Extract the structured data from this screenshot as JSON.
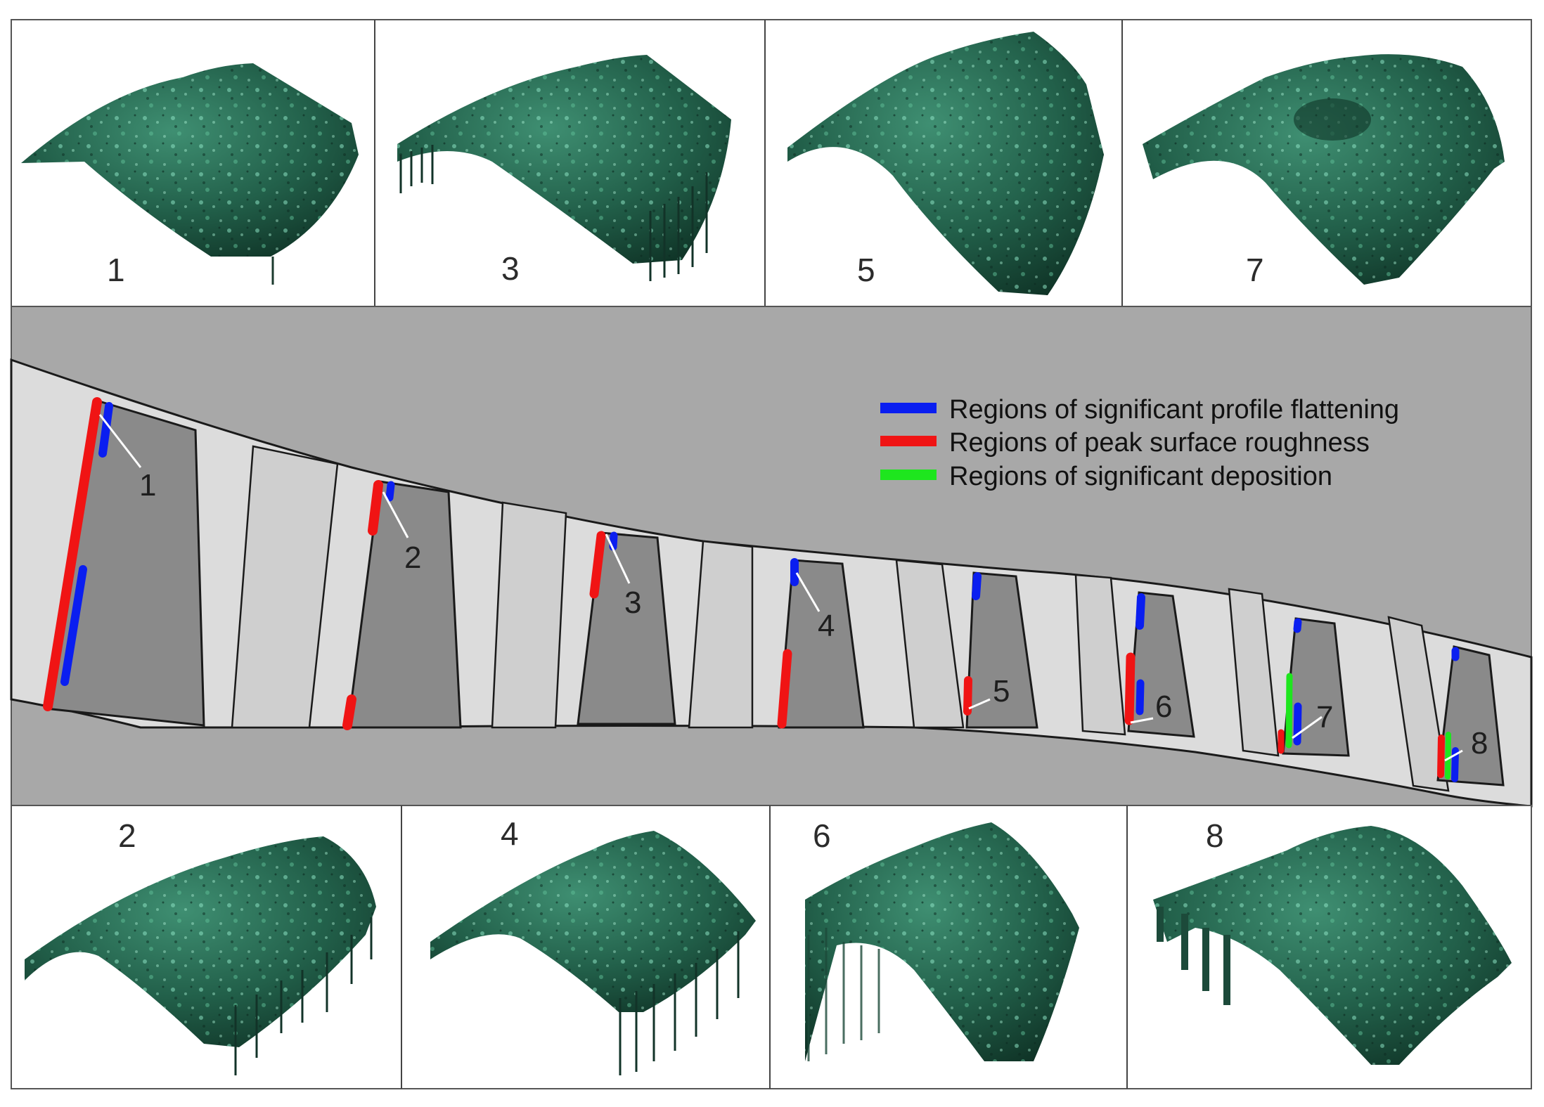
{
  "legend": {
    "items": [
      {
        "label": "Regions of significant profile flattening",
        "color": "#0a1ef0"
      },
      {
        "label": "Regions of peak surface roughness",
        "color": "#f01414"
      },
      {
        "label": "Regions of significant deposition",
        "color": "#1ee61e"
      }
    ]
  },
  "top_panels": [
    {
      "label": "1",
      "icon": "coating-surface-scan"
    },
    {
      "label": "3",
      "icon": "coating-surface-scan"
    },
    {
      "label": "5",
      "icon": "coating-surface-scan"
    },
    {
      "label": "7",
      "icon": "coating-surface-scan"
    }
  ],
  "bottom_panels": [
    {
      "label": "2",
      "icon": "coating-surface-scan"
    },
    {
      "label": "4",
      "icon": "coating-surface-scan"
    },
    {
      "label": "6",
      "icon": "coating-surface-scan"
    },
    {
      "label": "8",
      "icon": "coating-surface-scan"
    }
  ],
  "stages": [
    {
      "label": "1"
    },
    {
      "label": "2"
    },
    {
      "label": "3"
    },
    {
      "label": "4"
    },
    {
      "label": "5"
    },
    {
      "label": "6"
    },
    {
      "label": "7"
    },
    {
      "label": "8"
    }
  ],
  "colors": {
    "casing": "#a8a8a8",
    "flowpath": "#dcdcdc",
    "blade": "#8a8a8a",
    "scan_dark": "#123a2c",
    "scan_mid": "#2c6e56",
    "scan_light": "#79d6b3"
  }
}
